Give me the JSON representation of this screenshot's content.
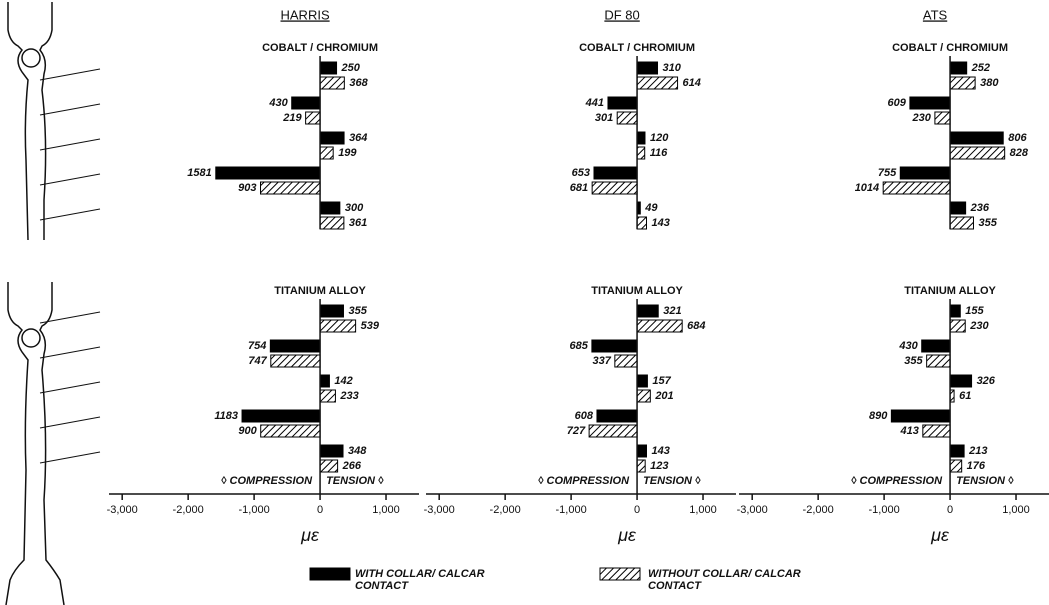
{
  "columns": [
    "HARRIS",
    "DF 80",
    "ATS"
  ],
  "chart_data": [
    {
      "type": "bar",
      "subtitle": "COBALT / CHROMIUM",
      "categories": [
        null,
        null,
        null,
        null,
        null
      ],
      "xlim": [
        -3200,
        1500
      ],
      "series": [
        {
          "name": "WITH COLLAR/ CALCAR CONTACT",
          "color": "#000000",
          "values": [
            250,
            -430,
            364,
            -1581,
            300
          ],
          "value_labels": [
            "250",
            "430",
            "364",
            "1581",
            "300"
          ]
        },
        {
          "name": "WITHOUT COLLAR/ CALCAR CONTACT",
          "color": "#000000",
          "hatch": true,
          "values": [
            368,
            -219,
            199,
            -903,
            361
          ],
          "value_labels": [
            "368",
            "219",
            "199",
            "903",
            "361"
          ]
        }
      ]
    },
    {
      "type": "bar",
      "subtitle": "COBALT / CHROMIUM",
      "categories": [
        null,
        null,
        null,
        null,
        null
      ],
      "xlim": [
        -3200,
        1500
      ],
      "series": [
        {
          "color": "#000000",
          "values": [
            310,
            -441,
            120,
            -653,
            49
          ],
          "value_labels": [
            "310",
            "441",
            "120",
            "653",
            "49"
          ]
        },
        {
          "color": "#000000",
          "hatch": true,
          "values": [
            614,
            -301,
            116,
            -681,
            143
          ],
          "value_labels": [
            "614",
            "301",
            "116",
            "681",
            "143"
          ]
        }
      ]
    },
    {
      "type": "bar",
      "subtitle": "COBALT / CHROMIUM",
      "categories": [
        null,
        null,
        null,
        null,
        null
      ],
      "xlim": [
        -3200,
        1500
      ],
      "series": [
        {
          "color": "#000000",
          "values": [
            252,
            -609,
            806,
            -755,
            236
          ],
          "value_labels": [
            "252",
            "609",
            "806",
            "755",
            "236"
          ]
        },
        {
          "color": "#000000",
          "hatch": true,
          "values": [
            380,
            -230,
            828,
            -1014,
            355
          ],
          "value_labels": [
            "380",
            "230",
            "828",
            "1014",
            "355"
          ]
        }
      ]
    },
    {
      "type": "bar",
      "subtitle": "TITANIUM ALLOY",
      "categories": [
        null,
        null,
        null,
        null,
        null
      ],
      "xlim": [
        -3200,
        1500
      ],
      "xticks": [
        {
          "value": -3000,
          "label": "-3,000"
        },
        {
          "value": -2000,
          "label": "-2,000"
        },
        {
          "value": -1000,
          "label": "-1,000"
        },
        0,
        {
          "value": 1000,
          "label": "1,000"
        }
      ],
      "x_label": "με",
      "left_note": "◊ COMPRESSION",
      "right_note": "TENSION ◊",
      "series": [
        {
          "color": "#000000",
          "values": [
            355,
            -754,
            142,
            -1183,
            348
          ],
          "value_labels": [
            "355",
            "754",
            "142",
            "1183",
            "348"
          ]
        },
        {
          "color": "#000000",
          "hatch": true,
          "values": [
            539,
            -747,
            233,
            -900,
            266
          ],
          "value_labels": [
            "539",
            "747",
            "233",
            "900",
            "266"
          ]
        }
      ]
    },
    {
      "type": "bar",
      "subtitle": "TITANIUM ALLOY",
      "categories": [
        null,
        null,
        null,
        null,
        null
      ],
      "xlim": [
        -3200,
        1500
      ],
      "xticks": [
        {
          "value": -3000,
          "label": "-3,000"
        },
        {
          "value": -2000,
          "label": "-2,000"
        },
        {
          "value": -1000,
          "label": "-1,000"
        },
        0,
        {
          "value": 1000,
          "label": "1,000"
        }
      ],
      "x_label": "με",
      "left_note": "◊ COMPRESSION",
      "right_note": "TENSION ◊",
      "series": [
        {
          "color": "#000000",
          "values": [
            321,
            -685,
            157,
            -608,
            143
          ],
          "value_labels": [
            "321",
            "685",
            "157",
            "608",
            "143"
          ]
        },
        {
          "color": "#000000",
          "hatch": true,
          "values": [
            684,
            -337,
            201,
            -727,
            123
          ],
          "value_labels": [
            "684",
            "337",
            "201",
            "727",
            "123"
          ]
        }
      ]
    },
    {
      "type": "bar",
      "subtitle": "TITANIUM ALLOY",
      "categories": [
        null,
        null,
        null,
        null,
        null
      ],
      "xlim": [
        -3200,
        1500
      ],
      "xticks": [
        {
          "value": -3000,
          "label": "-3,000"
        },
        {
          "value": -2000,
          "label": "-2,000"
        },
        {
          "value": -1000,
          "label": "-1,000"
        },
        0,
        {
          "value": 1000,
          "label": "1,000"
        }
      ],
      "x_label": "με",
      "left_note": "◊ COMPRESSION",
      "right_note": "TENSION ◊",
      "series": [
        {
          "color": "#000000",
          "values": [
            155,
            -430,
            326,
            -890,
            213
          ],
          "value_labels": [
            "155",
            "430",
            "326",
            "890",
            "213"
          ]
        },
        {
          "color": "#000000",
          "hatch": true,
          "values": [
            230,
            -355,
            61,
            -413,
            176
          ],
          "value_labels": [
            "230",
            "355",
            "61",
            "413",
            "176"
          ]
        }
      ]
    }
  ]
}
